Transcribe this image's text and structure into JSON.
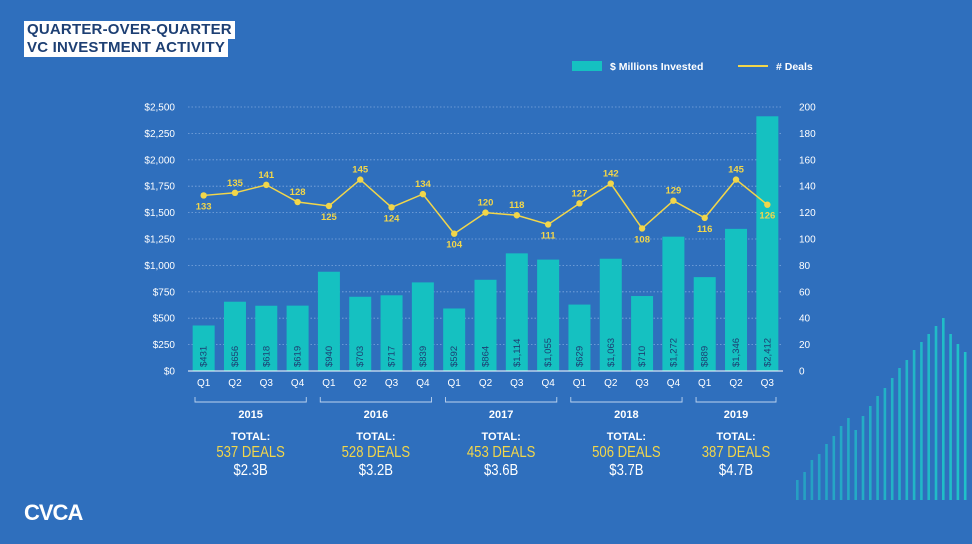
{
  "title_lines": [
    "QUARTER-OVER-QUARTER",
    "VC INVESTMENT ACTIVITY"
  ],
  "logo_text": "CVCA",
  "colors": {
    "background": "#2f6fbd",
    "bar": "#15c1c1",
    "line": "#f2d64a",
    "text": "#ffffff",
    "grid": "#7ea7dd"
  },
  "chart_data": {
    "type": "bar",
    "combo": "bar+line (dual axis)",
    "title": "QUARTER-OVER-QUARTER VC INVESTMENT ACTIVITY",
    "categories": [
      "Q1",
      "Q2",
      "Q3",
      "Q4",
      "Q1",
      "Q2",
      "Q3",
      "Q4",
      "Q1",
      "Q2",
      "Q3",
      "Q4",
      "Q1",
      "Q2",
      "Q3",
      "Q4",
      "Q1",
      "Q2",
      "Q3"
    ],
    "series": [
      {
        "name": "$ Millions Invested",
        "type": "bar",
        "axis": "left",
        "values": [
          431,
          656,
          618,
          619,
          940,
          703,
          717,
          839,
          592,
          864,
          1114,
          1055,
          629,
          1063,
          710,
          1272,
          889,
          1346,
          2412
        ],
        "labels": [
          "$431",
          "$656",
          "$618",
          "$619",
          "$940",
          "$703",
          "$717",
          "$839",
          "$592",
          "$864",
          "$1,114",
          "$1,055",
          "$629",
          "$1,063",
          "$710",
          "$1,272",
          "$889",
          "$1,346",
          "$2,412"
        ]
      },
      {
        "name": "# Deals",
        "type": "line",
        "axis": "right",
        "values": [
          133,
          135,
          141,
          128,
          125,
          145,
          124,
          134,
          104,
          120,
          118,
          111,
          127,
          142,
          108,
          129,
          116,
          145,
          126
        ]
      }
    ],
    "left_axis": {
      "ylim": [
        0,
        2500
      ],
      "ticks": [
        "$0",
        "$250",
        "$500",
        "$750",
        "$1,000",
        "$1,250",
        "$1,500",
        "$1,750",
        "$2,000",
        "$2,250",
        "$2,500"
      ]
    },
    "right_axis": {
      "ylim": [
        0,
        200
      ],
      "ticks": [
        "0",
        "20",
        "40",
        "60",
        "80",
        "100",
        "120",
        "140",
        "160",
        "180",
        "200"
      ]
    },
    "legend": {
      "position": "top-right",
      "items": [
        "$ Millions Invested",
        "# Deals"
      ]
    },
    "groups": [
      {
        "year": "2015",
        "start": 0,
        "end": 3,
        "total_label": "TOTAL:",
        "deals": "537 DEALS",
        "amount": "$2.3B"
      },
      {
        "year": "2016",
        "start": 4,
        "end": 7,
        "total_label": "TOTAL:",
        "deals": "528 DEALS",
        "amount": "$3.2B"
      },
      {
        "year": "2017",
        "start": 8,
        "end": 11,
        "total_label": "TOTAL:",
        "deals": "453 DEALS",
        "amount": "$3.6B"
      },
      {
        "year": "2018",
        "start": 12,
        "end": 15,
        "total_label": "TOTAL:",
        "deals": "506 DEALS",
        "amount": "$3.7B"
      },
      {
        "year": "2019",
        "start": 16,
        "end": 18,
        "total_label": "TOTAL:",
        "deals": "387 DEALS",
        "amount": "$4.7B"
      }
    ],
    "grid": true
  }
}
